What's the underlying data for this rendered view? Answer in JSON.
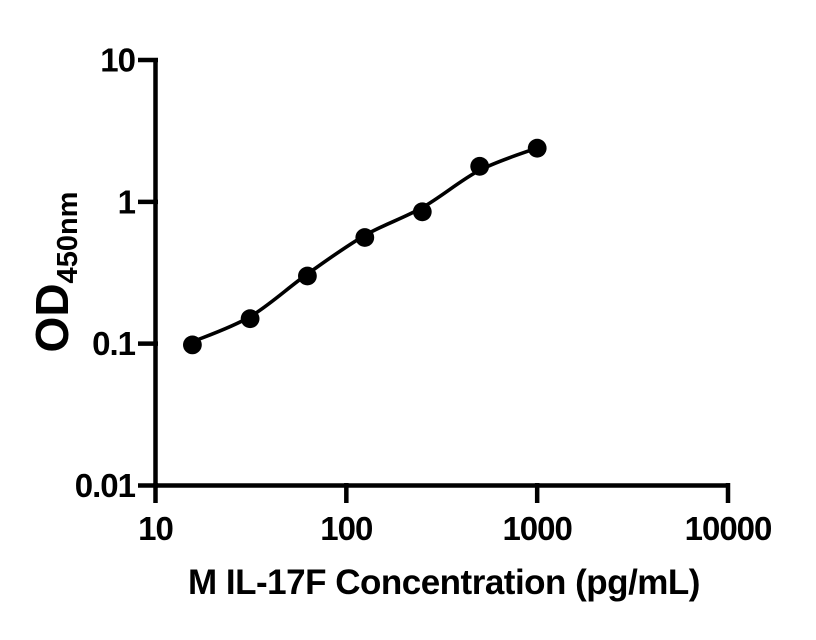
{
  "chart_data": {
    "type": "scatter",
    "subtype": "ELISA standard curve with fitted sigmoid line",
    "title": "",
    "xlabel": "M IL-17F Concentration (pg/mL)",
    "ylabel": "OD450nm",
    "ylabel_main": "OD",
    "ylabel_sub": "450nm",
    "x_scale": "log10",
    "y_scale": "log10",
    "xlim": [
      10,
      10000
    ],
    "ylim": [
      0.01,
      10
    ],
    "grid": false,
    "legend": false,
    "x_ticks": [
      {
        "value": 10,
        "label": "10"
      },
      {
        "value": 100,
        "label": "100"
      },
      {
        "value": 1000,
        "label": "1000"
      },
      {
        "value": 10000,
        "label": "10000"
      }
    ],
    "y_ticks": [
      {
        "value": 10,
        "label": "10"
      },
      {
        "value": 1,
        "label": "1"
      },
      {
        "value": 0.1,
        "label": "0.1"
      },
      {
        "value": 0.01,
        "label": "0.01"
      }
    ],
    "points": [
      {
        "x": 15.6,
        "y": 0.098
      },
      {
        "x": 31.3,
        "y": 0.15
      },
      {
        "x": 62.5,
        "y": 0.3
      },
      {
        "x": 125,
        "y": 0.56
      },
      {
        "x": 250,
        "y": 0.85
      },
      {
        "x": 500,
        "y": 1.78
      },
      {
        "x": 1000,
        "y": 2.39
      }
    ],
    "fit_curve": [
      {
        "x": 15.6,
        "y": 0.103
      },
      {
        "x": 31.3,
        "y": 0.155
      },
      {
        "x": 62.5,
        "y": 0.31
      },
      {
        "x": 125,
        "y": 0.58
      },
      {
        "x": 250,
        "y": 0.91
      },
      {
        "x": 500,
        "y": 1.67
      },
      {
        "x": 1000,
        "y": 2.4
      }
    ],
    "marker": "filled-circle",
    "colors": {
      "foreground": "#000000",
      "background": "#ffffff"
    }
  }
}
